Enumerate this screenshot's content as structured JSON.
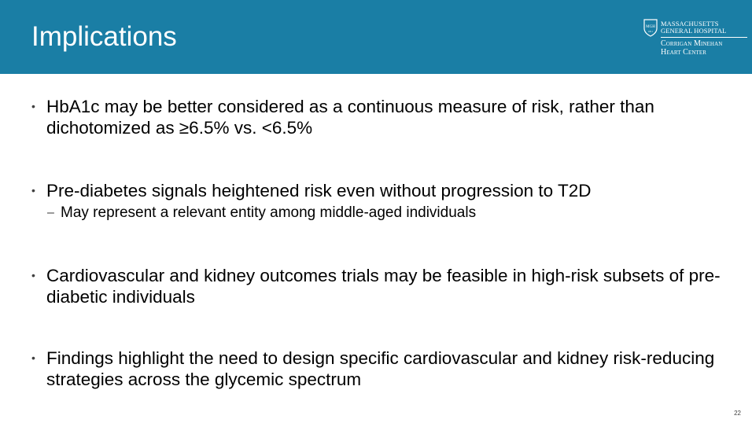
{
  "header": {
    "title": "Implications",
    "logo": {
      "line1": "MASSACHUSETTS",
      "line2": "GENERAL HOSPITAL",
      "line3": "Corrigan Minehan",
      "line4": "Heart Center",
      "shield_text": "MGH",
      "shield_year": "1811"
    }
  },
  "bullets": [
    {
      "text": "HbA1c may be better considered as a continuous measure of risk, rather than dichotomized as ≥6.5% vs. <6.5%"
    },
    {
      "text": "Pre-diabetes signals heightened risk even without progression to T2D",
      "sub": "May represent a relevant entity among middle-aged individuals"
    },
    {
      "text": "Cardiovascular and kidney outcomes trials may be feasible in high-risk subsets of pre-diabetic individuals"
    },
    {
      "text": "Findings highlight the need to design specific cardiovascular and kidney risk-reducing strategies across the glycemic spectrum"
    }
  ],
  "bullet_symbol": "•",
  "sub_symbol": "–",
  "page_number": "22",
  "colors": {
    "header_bg": "#1a7ea5",
    "title_text": "#ffffff",
    "body_text": "#000000"
  }
}
